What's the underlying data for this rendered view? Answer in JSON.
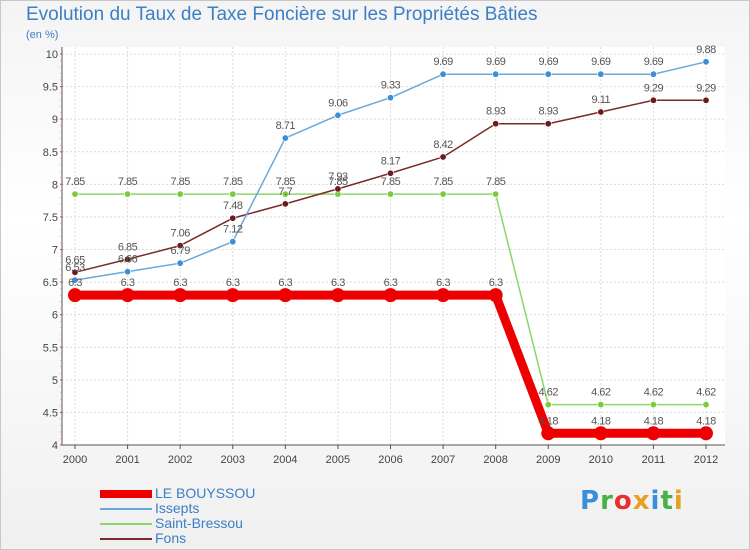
{
  "title": "Evolution du Taux de Taxe Foncière sur les Propriétés Bâties",
  "subtitle": "(en %)",
  "logo": {
    "text": "Proxiti",
    "colors": [
      "#3b8fd8",
      "#4ab04a",
      "#e83030",
      "#e8a020",
      "#3b8fd8",
      "#4ab04a",
      "#e8a020"
    ]
  },
  "chart_data": {
    "type": "line",
    "title": "Evolution du Taux de Taxe Foncière sur les Propriétés Bâties",
    "ylabel": "(en %)",
    "xlabel": "",
    "ylim": [
      4,
      10
    ],
    "yticks": [
      "4",
      "4.5",
      "5",
      "5.5",
      "6",
      "6.5",
      "7",
      "7.5",
      "8",
      "8.5",
      "9",
      "9.5",
      "10"
    ],
    "categories": [
      "2000",
      "2001",
      "2002",
      "2003",
      "2004",
      "2005",
      "2006",
      "2007",
      "2008",
      "2009",
      "2010",
      "2011",
      "2012"
    ],
    "grid": true,
    "series": [
      {
        "name": "LE BOUYSSOU",
        "color": "#ee0000",
        "thick": true,
        "values": [
          6.3,
          6.3,
          6.3,
          6.3,
          6.3,
          6.3,
          6.3,
          6.3,
          6.3,
          4.18,
          4.18,
          4.18,
          4.18
        ],
        "labels": [
          "6.3",
          "6.3",
          "6.3",
          "6.3",
          "6.3",
          "6.3",
          "6.3",
          "6.3",
          "6.3",
          "4.18",
          "4.18",
          "4.18",
          "4.18"
        ]
      },
      {
        "name": "Issepts",
        "color": "#6aa8d8",
        "marker": "#3b8fd8",
        "thick": false,
        "values": [
          6.53,
          6.66,
          6.79,
          7.12,
          8.71,
          9.06,
          9.33,
          9.69,
          9.69,
          9.69,
          9.69,
          9.69,
          9.88
        ],
        "labels": [
          "6.53",
          "6.66",
          "6.79",
          "7.12",
          "8.71",
          "9.06",
          "9.33",
          "9.69",
          "9.69",
          "9.69",
          "9.69",
          "9.69",
          "9.88"
        ]
      },
      {
        "name": "Saint-Bressou",
        "color": "#8cd66a",
        "marker": "#7acc3c",
        "thick": false,
        "values": [
          7.85,
          7.85,
          7.85,
          7.85,
          7.85,
          7.85,
          7.85,
          7.85,
          7.85,
          4.62,
          4.62,
          4.62,
          4.62
        ],
        "labels": [
          "7.85",
          "7.85",
          "7.85",
          "7.85",
          "7.85",
          "7.85",
          "7.85",
          "7.85",
          "7.85",
          "4.62",
          "4.62",
          "4.62",
          "4.62"
        ]
      },
      {
        "name": "Fons",
        "color": "#7a2a2a",
        "marker": "#6a1c1c",
        "thick": false,
        "values": [
          6.65,
          6.85,
          7.06,
          7.48,
          7.7,
          7.93,
          8.17,
          8.42,
          8.93,
          8.93,
          9.11,
          9.29,
          9.29
        ],
        "labels": [
          "6.65",
          "6.85",
          "7.06",
          "7.48",
          "7.7",
          "7.93",
          "8.17",
          "8.42",
          "8.93",
          "8.93",
          "9.11",
          "9.29",
          "9.29"
        ]
      }
    ]
  }
}
